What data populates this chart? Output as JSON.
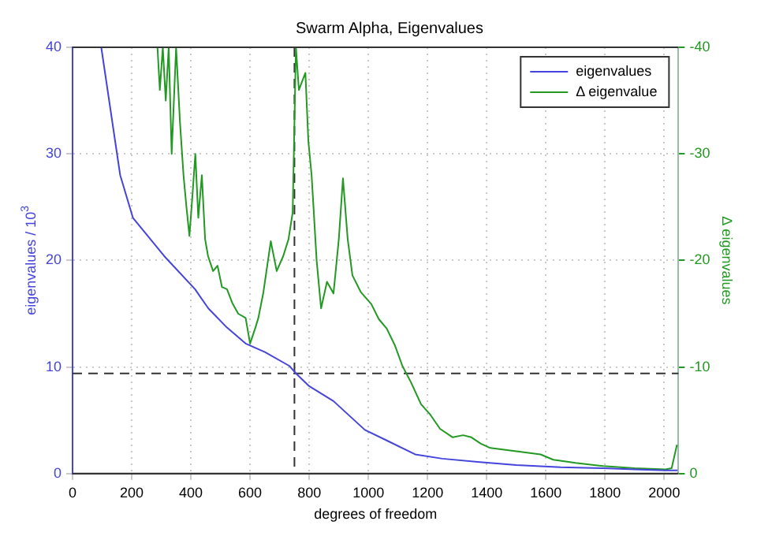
{
  "chart_data": {
    "type": "line",
    "title": "Swarm Alpha, Eigenvalues",
    "xlabel": "degrees of freedom",
    "ylabel": "eigenvalues / 10$^{3}$",
    "y2label": "Δ eigenvalues",
    "xlim": [
      0,
      2048
    ],
    "xticks": [
      0,
      200,
      400,
      600,
      800,
      1000,
      1200,
      1400,
      1600,
      1800,
      2000
    ],
    "ylim": [
      0,
      40
    ],
    "yticks": [
      0,
      10,
      20,
      30,
      40
    ],
    "y2lim": [
      0,
      -40
    ],
    "y2ticks": [
      0,
      -10,
      -20,
      -30,
      -40
    ],
    "grid": true,
    "legend": "top right",
    "line_style": "solid",
    "marker": "none",
    "ref_lines": [
      {
        "axis": "x",
        "value": 750,
        "color": "#333333",
        "line_style": "dashed"
      },
      {
        "axis": "y",
        "value": 9.4,
        "color": "#333333",
        "line_style": "dashed"
      }
    ],
    "series": [
      {
        "name": "eigenvalues",
        "color": "#4444dd",
        "x": [
          97,
          161,
          204,
          310,
          414,
          459,
          522,
          585,
          650,
          733,
          755,
          800,
          882,
          988,
          1070,
          1158,
          1250,
          1369,
          1500,
          1650,
          1794,
          1900,
          2004,
          2045
        ],
        "values": [
          40,
          28,
          24,
          20.4,
          17.3,
          15.5,
          13.7,
          12.2,
          11.4,
          10.1,
          9.4,
          8.2,
          6.8,
          4.1,
          3,
          1.8,
          1.4,
          1.1,
          0.8,
          0.6,
          0.5,
          0.4,
          0.3,
          0.3
        ]
      },
      {
        "name": "Δ eigenvalue",
        "color": "#229922",
        "axis": "y2",
        "x": [
          287,
          295,
          305,
          315,
          325,
          335,
          350,
          363,
          375,
          385,
          395,
          405,
          415,
          425,
          437,
          448,
          458,
          475,
          490,
          505,
          522,
          540,
          560,
          585,
          600,
          617,
          628,
          645,
          670,
          690,
          712,
          730,
          744,
          755,
          765,
          787,
          797,
          808,
          825,
          840,
          860,
          882,
          900,
          914,
          930,
          946,
          975,
          1010,
          1035,
          1062,
          1090,
          1115,
          1145,
          1178,
          1210,
          1242,
          1285,
          1320,
          1348,
          1380,
          1412,
          1500,
          1582,
          1625,
          1700,
          1794,
          1900,
          2004,
          2025,
          2043
        ],
        "values": [
          -40,
          -36,
          -40,
          -35,
          -40,
          -30,
          -40,
          -33,
          -28,
          -25,
          -22.3,
          -26,
          -30,
          -24,
          -28,
          -22,
          -20.4,
          -19,
          -19.5,
          -17.5,
          -17.3,
          -16,
          -15,
          -14.6,
          -12.2,
          -13.6,
          -14.6,
          -17,
          -21.8,
          -19,
          -20.4,
          -22,
          -24.5,
          -40,
          -36,
          -37.6,
          -31.2,
          -28,
          -20,
          -15.5,
          -18,
          -16.9,
          -22,
          -27.7,
          -22,
          -18.6,
          -17,
          -15.9,
          -14.5,
          -13.6,
          -12,
          -10.1,
          -8.5,
          -6.5,
          -5.5,
          -4.2,
          -3.4,
          -3.6,
          -3.4,
          -2.8,
          -2.4,
          -2.1,
          -1.8,
          -1.3,
          -1,
          -0.7,
          -0.5,
          -0.4,
          -0.5,
          -2.7
        ]
      }
    ]
  }
}
